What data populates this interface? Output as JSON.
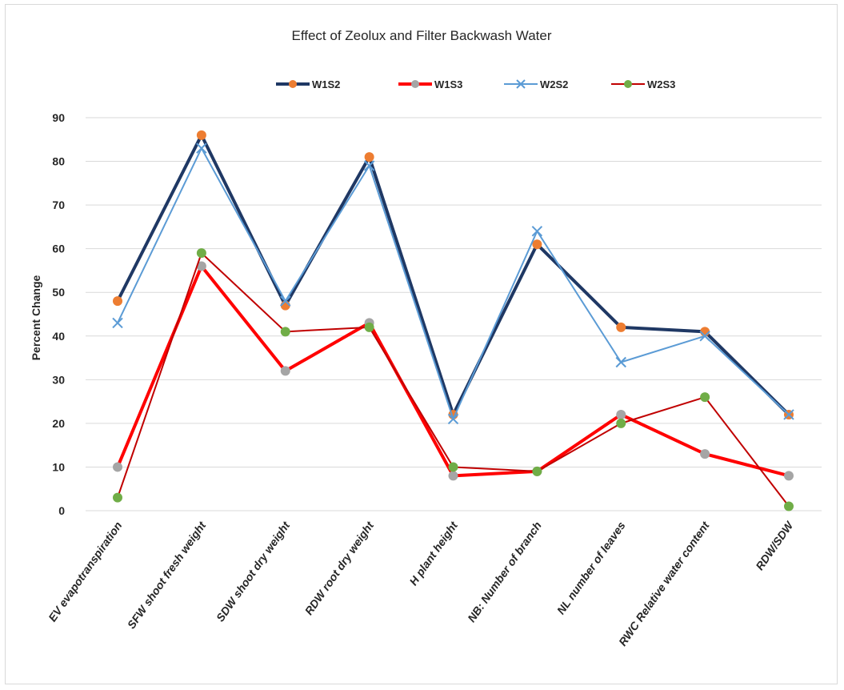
{
  "chart_data": {
    "type": "line",
    "title": "Effect of Zeolux and Filter Backwash Water",
    "xlabel": "",
    "ylabel": "Percent Change",
    "ylim": [
      0,
      90
    ],
    "yticks": [
      0,
      10,
      20,
      30,
      40,
      50,
      60,
      70,
      80,
      90
    ],
    "grid": true,
    "legend_position": "top",
    "categories": [
      "EV  evapotranspiration",
      "SFW  shoot fresh weight",
      "SDW shoot dry weight",
      "RDW root dry weight",
      "H plant height",
      "NB: Number of branch",
      "NL number of leaves",
      "RWC  Relative water content",
      "RDW/SDW"
    ],
    "series": [
      {
        "name": "W1S2",
        "values": [
          48,
          86,
          47,
          81,
          22,
          61,
          42,
          41,
          22
        ],
        "line_color": "#1f3864",
        "marker": "circle",
        "marker_color": "#ed7d31",
        "line_width": 4
      },
      {
        "name": "W1S3",
        "values": [
          10,
          56,
          32,
          43,
          8,
          9,
          22,
          13,
          8
        ],
        "line_color": "#ff0000",
        "marker": "circle",
        "marker_color": "#a5a5a5",
        "line_width": 4
      },
      {
        "name": "W2S2",
        "values": [
          43,
          83,
          48,
          79,
          21,
          64,
          34,
          40,
          22
        ],
        "line_color": "#5b9bd5",
        "marker": "x",
        "marker_color": "#5b9bd5",
        "line_width": 2
      },
      {
        "name": "W2S3",
        "values": [
          3,
          59,
          41,
          42,
          10,
          9,
          20,
          26,
          1
        ],
        "line_color": "#c00000",
        "marker": "circle",
        "marker_color": "#70ad47",
        "line_width": 2
      }
    ]
  }
}
